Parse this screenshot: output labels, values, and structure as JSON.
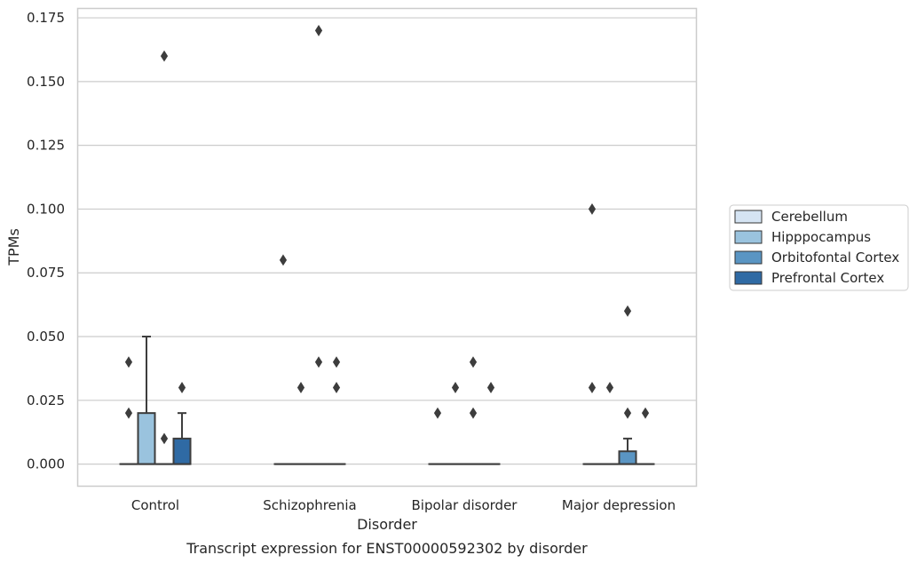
{
  "chart_data": {
    "type": "box",
    "title": "",
    "caption": "Transcript expression for ENST00000592302 by disorder",
    "xlabel": "Disorder",
    "ylabel": "TPMs",
    "ylim": [
      -0.0085,
      0.1785
    ],
    "yticks": [
      "0.000",
      "0.025",
      "0.050",
      "0.075",
      "0.100",
      "0.125",
      "0.150",
      "0.175"
    ],
    "ytick_values": [
      0,
      0.025,
      0.05,
      0.075,
      0.1,
      0.125,
      0.15,
      0.175
    ],
    "grid": true,
    "legend_position": "right",
    "categories": [
      "Control",
      "Schizophrenia",
      "Bipolar disorder",
      "Major depression"
    ],
    "series": [
      {
        "name": "Cerebellum",
        "color": "#d5e4f3",
        "boxes": [
          {
            "q1": 0,
            "median": 0,
            "q3": 0,
            "whisker_low": 0,
            "whisker_high": 0,
            "outliers": [
              0.02,
              0.04
            ]
          },
          {
            "q1": 0,
            "median": 0,
            "q3": 0,
            "whisker_low": 0,
            "whisker_high": 0,
            "outliers": [
              0.08
            ]
          },
          {
            "q1": 0,
            "median": 0,
            "q3": 0,
            "whisker_low": 0,
            "whisker_high": 0,
            "outliers": [
              0.02
            ]
          },
          {
            "q1": 0,
            "median": 0,
            "q3": 0,
            "whisker_low": 0,
            "whisker_high": 0,
            "outliers": [
              0.03,
              0.1
            ]
          }
        ]
      },
      {
        "name": "Hipppocampus",
        "color": "#9ac3de",
        "boxes": [
          {
            "q1": 0,
            "median": 0,
            "q3": 0.02,
            "whisker_low": 0,
            "whisker_high": 0.05,
            "outliers": []
          },
          {
            "q1": 0,
            "median": 0,
            "q3": 0,
            "whisker_low": 0,
            "whisker_high": 0,
            "outliers": [
              0.03
            ]
          },
          {
            "q1": 0,
            "median": 0,
            "q3": 0,
            "whisker_low": 0,
            "whisker_high": 0,
            "outliers": [
              0.03
            ]
          },
          {
            "q1": 0,
            "median": 0,
            "q3": 0,
            "whisker_low": 0,
            "whisker_high": 0,
            "outliers": [
              0.03
            ]
          }
        ]
      },
      {
        "name": "Orbitofontal Cortex",
        "color": "#5a95c3",
        "boxes": [
          {
            "q1": 0,
            "median": 0,
            "q3": 0,
            "whisker_low": 0,
            "whisker_high": 0,
            "outliers": [
              0.01,
              0.16
            ]
          },
          {
            "q1": 0,
            "median": 0,
            "q3": 0,
            "whisker_low": 0,
            "whisker_high": 0,
            "outliers": [
              0.04,
              0.17
            ]
          },
          {
            "q1": 0,
            "median": 0,
            "q3": 0,
            "whisker_low": 0,
            "whisker_high": 0,
            "outliers": [
              0.02,
              0.04
            ]
          },
          {
            "q1": 0,
            "median": 0,
            "q3": 0.005,
            "whisker_low": 0,
            "whisker_high": 0.01,
            "outliers": [
              0.02,
              0.06
            ]
          }
        ]
      },
      {
        "name": "Prefrontal Cortex",
        "color": "#2f6aa4",
        "boxes": [
          {
            "q1": 0,
            "median": 0,
            "q3": 0.01,
            "whisker_low": 0,
            "whisker_high": 0.02,
            "outliers": [
              0.03
            ]
          },
          {
            "q1": 0,
            "median": 0,
            "q3": 0,
            "whisker_low": 0,
            "whisker_high": 0,
            "outliers": [
              0.03,
              0.04
            ]
          },
          {
            "q1": 0,
            "median": 0,
            "q3": 0,
            "whisker_low": 0,
            "whisker_high": 0,
            "outliers": [
              0.03
            ]
          },
          {
            "q1": 0,
            "median": 0,
            "q3": 0,
            "whisker_low": 0,
            "whisker_high": 0,
            "outliers": [
              0.02
            ]
          }
        ]
      }
    ]
  }
}
